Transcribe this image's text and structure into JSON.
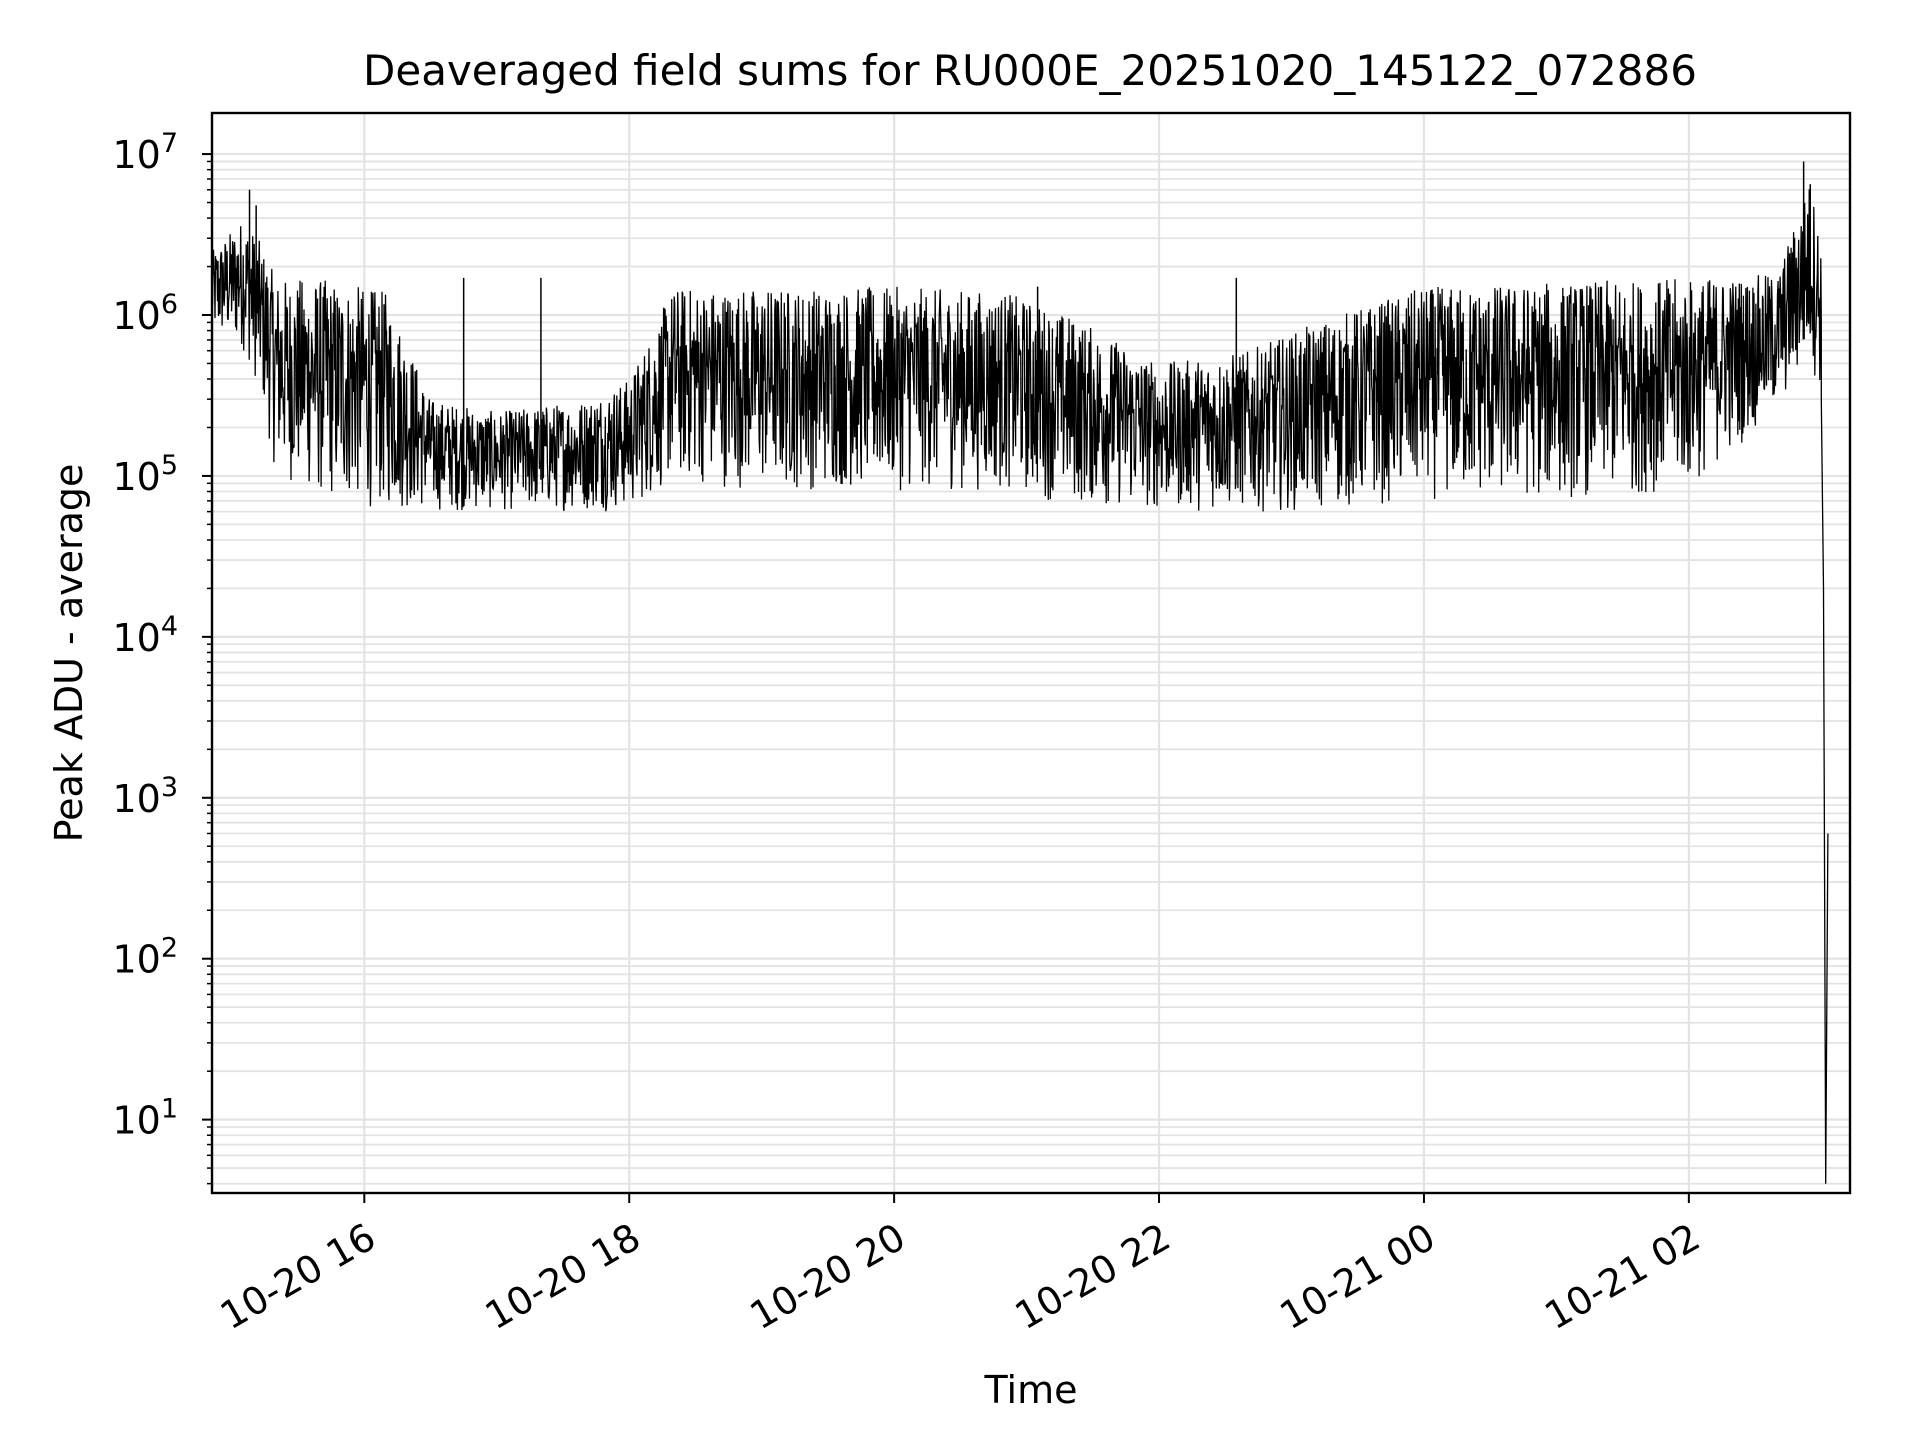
{
  "chart_data": {
    "type": "line",
    "title": "Deaveraged field sums for RU000E_20251020_145122_072886",
    "xlabel": "Time",
    "ylabel": "Peak ADU - average",
    "yscale": "log",
    "ylim": [
      3.5,
      18000000
    ],
    "xlim": [
      "2025-10-20 14:51",
      "2025-10-21 03:13"
    ],
    "grid": true,
    "line_color": "#000000",
    "grid_color": "#e3e3e3",
    "x_ticks": [
      {
        "t": "2025-10-20 16:00",
        "label": "10-20 16"
      },
      {
        "t": "2025-10-20 18:00",
        "label": "10-20 18"
      },
      {
        "t": "2025-10-20 20:00",
        "label": "10-20 20"
      },
      {
        "t": "2025-10-20 22:00",
        "label": "10-20 22"
      },
      {
        "t": "2025-10-21 00:00",
        "label": "10-21 00"
      },
      {
        "t": "2025-10-21 02:00",
        "label": "10-21 02"
      }
    ],
    "y_ticks": [
      {
        "value": 10,
        "base": "10",
        "exp": "1"
      },
      {
        "value": 100,
        "base": "10",
        "exp": "2"
      },
      {
        "value": 1000,
        "base": "10",
        "exp": "3"
      },
      {
        "value": 10000,
        "base": "10",
        "exp": "4"
      },
      {
        "value": 100000,
        "base": "10",
        "exp": "5"
      },
      {
        "value": 1000000,
        "base": "10",
        "exp": "6"
      },
      {
        "value": 10000000,
        "base": "10",
        "exp": "7"
      }
    ],
    "series": [
      {
        "envelope": [
          {
            "t": "2025-10-20 14:51",
            "low": 700000,
            "high": 2500000
          },
          {
            "t": "2025-10-20 15:05",
            "low": 600000,
            "high": 4000000
          },
          {
            "t": "2025-10-20 15:12",
            "low": 350000,
            "high": 3000000
          },
          {
            "t": "2025-10-20 15:20",
            "low": 100000,
            "high": 1700000
          },
          {
            "t": "2025-10-20 15:40",
            "low": 70000,
            "high": 1700000
          },
          {
            "t": "2025-10-20 16:10",
            "low": 60000,
            "high": 1400000
          },
          {
            "t": "2025-10-20 16:30",
            "low": 60000,
            "high": 300000
          },
          {
            "t": "2025-10-20 17:00",
            "low": 60000,
            "high": 250000
          },
          {
            "t": "2025-10-20 17:40",
            "low": 60000,
            "high": 300000
          },
          {
            "t": "2025-10-20 18:00",
            "low": 60000,
            "high": 400000
          },
          {
            "t": "2025-10-20 18:20",
            "low": 90000,
            "high": 1500000
          },
          {
            "t": "2025-10-20 19:00",
            "low": 80000,
            "high": 1500000
          },
          {
            "t": "2025-10-20 20:00",
            "low": 80000,
            "high": 1500000
          },
          {
            "t": "2025-10-20 20:50",
            "low": 80000,
            "high": 1400000
          },
          {
            "t": "2025-10-20 21:20",
            "low": 65000,
            "high": 1000000
          },
          {
            "t": "2025-10-20 22:00",
            "low": 60000,
            "high": 500000
          },
          {
            "t": "2025-10-20 22:40",
            "low": 60000,
            "high": 600000
          },
          {
            "t": "2025-10-20 23:20",
            "low": 60000,
            "high": 1000000
          },
          {
            "t": "2025-10-21 00:00",
            "low": 70000,
            "high": 1500000
          },
          {
            "t": "2025-10-21 01:00",
            "low": 70000,
            "high": 1600000
          },
          {
            "t": "2025-10-21 02:00",
            "low": 80000,
            "high": 1700000
          },
          {
            "t": "2025-10-21 02:40",
            "low": 250000,
            "high": 1800000
          },
          {
            "t": "2025-10-21 02:55",
            "low": 500000,
            "high": 7000000
          },
          {
            "t": "2025-10-21 03:00",
            "low": 300000,
            "high": 3000000
          },
          {
            "t": "2025-10-21 03:04",
            "low": 400,
            "high": 900
          }
        ],
        "spikes": [
          {
            "t": "2025-10-20 15:08",
            "value": 6000000
          },
          {
            "t": "2025-10-20 15:11",
            "value": 4800000
          },
          {
            "t": "2025-10-20 17:20",
            "value": 1700000
          },
          {
            "t": "2025-10-20 16:45",
            "value": 1700000
          },
          {
            "t": "2025-10-20 21:05",
            "value": 1500000
          },
          {
            "t": "2025-10-20 22:35",
            "value": 1700000
          },
          {
            "t": "2025-10-21 02:52",
            "value": 9000000
          },
          {
            "t": "2025-10-21 02:55",
            "value": 6500000
          }
        ],
        "tail": [
          {
            "t": "2025-10-21 03:00",
            "value": 300000
          },
          {
            "t": "2025-10-21 03:01",
            "value": 20000
          },
          {
            "t": "2025-10-21 03:02",
            "value": 4
          },
          {
            "t": "2025-10-21 03:03",
            "value": 600
          }
        ]
      }
    ]
  }
}
